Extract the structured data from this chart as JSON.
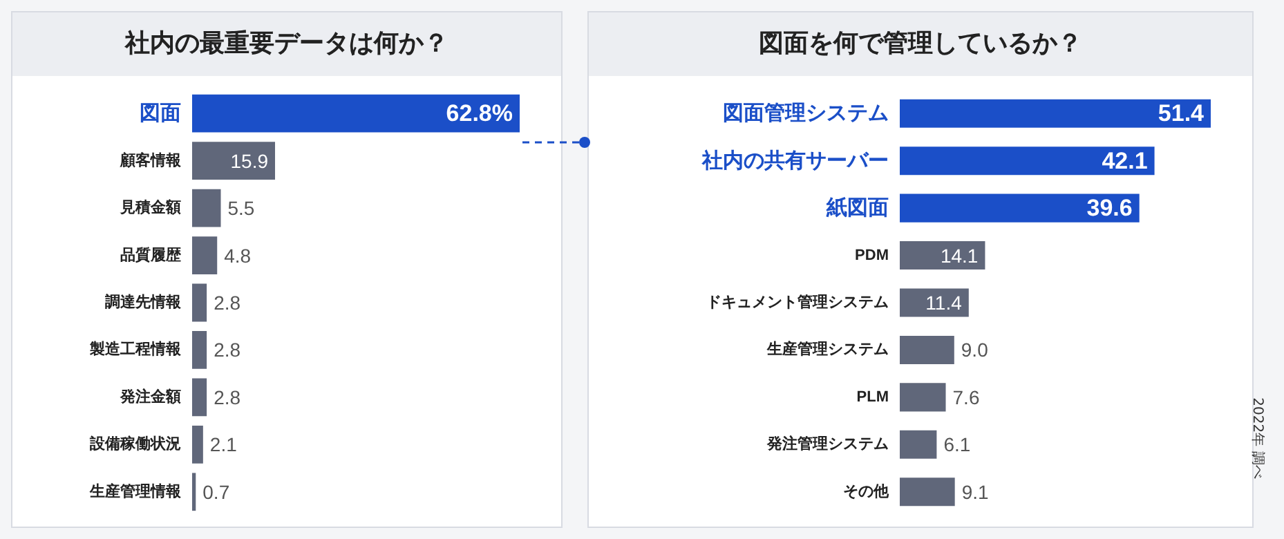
{
  "chart_data": [
    {
      "type": "bar",
      "orientation": "horizontal",
      "title": "社内の最重要データは何か？",
      "categories": [
        "図面",
        "顧客情報",
        "見積金額",
        "品質履歴",
        "調達先情報",
        "製造工程情報",
        "発注金額",
        "設備稼働状況",
        "生産管理情報"
      ],
      "values": [
        62.8,
        15.9,
        5.5,
        4.8,
        2.8,
        2.8,
        2.8,
        2.1,
        0.7
      ],
      "value_labels": [
        "62.8%",
        "15.9",
        "5.5",
        "4.8",
        "2.8",
        "2.8",
        "2.8",
        "2.1",
        "0.7"
      ],
      "colors": [
        "#1b4fc8",
        "#60677a",
        "#60677a",
        "#60677a",
        "#60677a",
        "#60677a",
        "#60677a",
        "#60677a",
        "#60677a"
      ]
    },
    {
      "type": "bar",
      "orientation": "horizontal",
      "title": "図面を何で管理しているか？",
      "categories": [
        "図面管理システム",
        "社内の共有サーバー",
        "紙図面",
        "PDM",
        "ドキュメント管理システム",
        "生産管理システム",
        "PLM",
        "発注管理システム",
        "その他"
      ],
      "values": [
        51.4,
        42.1,
        39.6,
        14.1,
        11.4,
        9.0,
        7.6,
        6.1,
        9.1
      ],
      "value_labels": [
        "51.4",
        "42.1",
        "39.6",
        "14.1",
        "11.4",
        "9.0",
        "7.6",
        "6.1",
        "9.1"
      ],
      "colors": [
        "#1b4fc8",
        "#1b4fc8",
        "#1b4fc8",
        "#60677a",
        "#60677a",
        "#60677a",
        "#60677a",
        "#60677a",
        "#60677a"
      ],
      "annotations": [
        "2022年 調べ"
      ]
    }
  ]
}
